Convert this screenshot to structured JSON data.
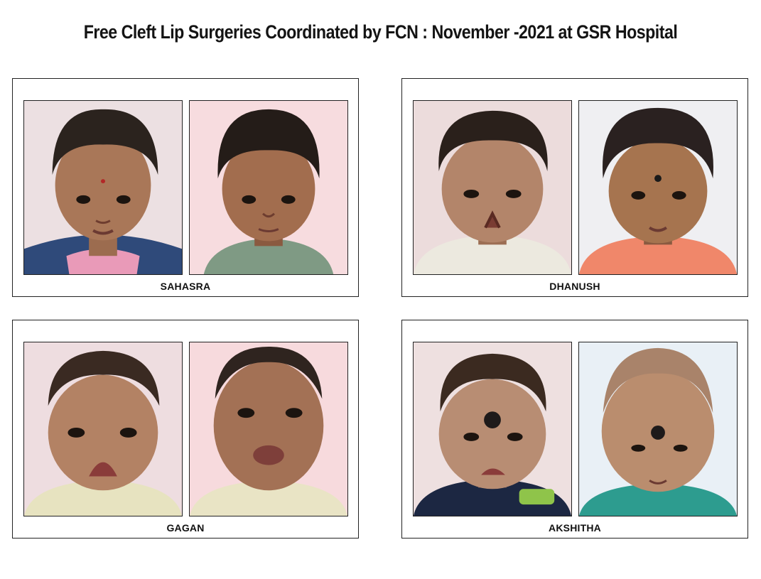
{
  "title": "Free Cleft Lip Surgeries Coordinated by FCN : November -2021 at GSR Hospital",
  "patients": [
    {
      "name": "SAHASRA",
      "before_bg": "#ecdfe2",
      "after_bg": "#f7dcdf",
      "hair": "#2b231e",
      "skin": "#a97758",
      "shirt_before": "#2f4a7a",
      "shirt_after": "#7f9a84"
    },
    {
      "name": "DHANUSH",
      "before_bg": "#ecdcdc",
      "after_bg": "#efeff2",
      "hair": "#2a201b",
      "skin": "#b3856a",
      "shirt_before": "#ece9df",
      "shirt_after": "#f0876a"
    },
    {
      "name": "GAGAN",
      "before_bg": "#eedde0",
      "after_bg": "#f7dadd",
      "hair": "#3a2a22",
      "skin": "#b38264",
      "shirt_before": "#e7e3c0",
      "shirt_after": "#e9e4c5"
    },
    {
      "name": "AKSHITHA",
      "before_bg": "#eee0e0",
      "after_bg": "#e9f0f6",
      "hair": "#3b2a20",
      "skin": "#b88d73",
      "shirt_before": "#1c2742",
      "shirt_after": "#2d9c8f"
    }
  ]
}
